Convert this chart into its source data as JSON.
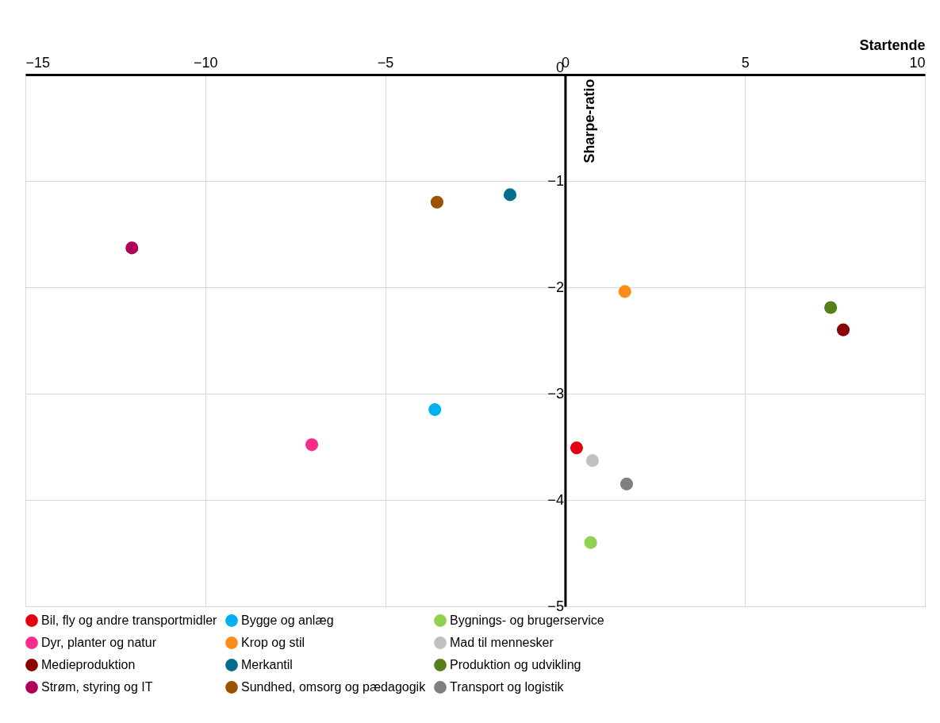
{
  "chart_data": {
    "type": "scatter",
    "xlabel": "Startende",
    "ylabel": "Sharpe-ratio",
    "xlim": [
      -15,
      10
    ],
    "xticks": [
      -15,
      -10,
      -5,
      0,
      5,
      10
    ],
    "ylim": [
      -5,
      0
    ],
    "yticks": [
      -5,
      -4,
      -3,
      -2,
      -1,
      0
    ],
    "grid": true,
    "legend": "bottom",
    "marker": "circle",
    "series": [
      {
        "name": "Bil, fly og andre transportmidler",
        "color": "#e3000f",
        "x": [
          0.32
        ],
        "values": [
          -3.51
        ]
      },
      {
        "name": "Bygge og anlæg",
        "color": "#00b0f0",
        "x": [
          -3.62
        ],
        "values": [
          -3.15
        ]
      },
      {
        "name": "Bygnings- og brugerservice",
        "color": "#92d050",
        "x": [
          0.71
        ],
        "values": [
          -4.4
        ]
      },
      {
        "name": "Dyr, planter og natur",
        "color": "#f72c8c",
        "x": [
          -7.04
        ],
        "values": [
          -3.48
        ]
      },
      {
        "name": "Krop og stil",
        "color": "#ff8c1a",
        "x": [
          1.66
        ],
        "values": [
          -2.04
        ]
      },
      {
        "name": "Mad til mennesker",
        "color": "#c0c0c0",
        "x": [
          0.76
        ],
        "values": [
          -3.63
        ]
      },
      {
        "name": "Medieproduktion",
        "color": "#8b0000",
        "x": [
          7.73
        ],
        "values": [
          -2.4
        ]
      },
      {
        "name": "Merkantil",
        "color": "#006e8c",
        "x": [
          -1.53
        ],
        "values": [
          -1.13
        ]
      },
      {
        "name": "Produktion og udvikling",
        "color": "#538019",
        "x": [
          7.38
        ],
        "values": [
          -2.19
        ]
      },
      {
        "name": "Strøm, styring og IT",
        "color": "#b0005a",
        "x": [
          -12.04
        ],
        "values": [
          -1.63
        ]
      },
      {
        "name": "Sundhed, omsorg og pædagogik",
        "color": "#9c5200",
        "x": [
          -3.56
        ],
        "values": [
          -1.2
        ]
      },
      {
        "name": "Transport og logistik",
        "color": "#7f7f7f",
        "x": [
          1.71
        ],
        "values": [
          -3.85
        ]
      }
    ]
  }
}
